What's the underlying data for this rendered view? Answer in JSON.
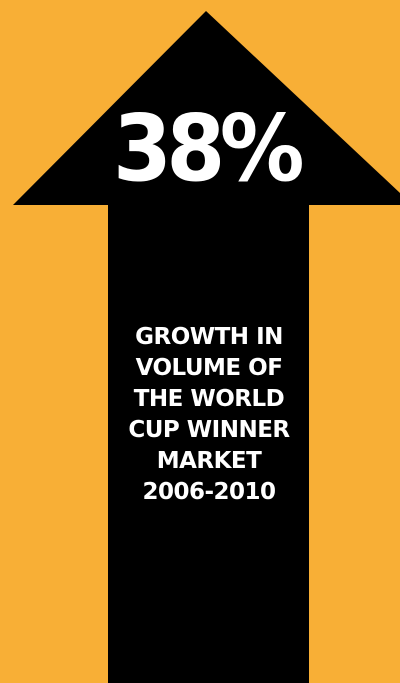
{
  "stat": {
    "value": "38%"
  },
  "caption": {
    "lines": [
      "GROWTH IN",
      "VOLUME OF",
      "THE WORLD",
      "CUP WINNER",
      "MARKET",
      "2006-2010"
    ]
  },
  "colors": {
    "background": "#F8AF36",
    "arrow": "#000000",
    "text": "#FFFFFF"
  },
  "icons": {
    "arrow": "up-arrow-icon"
  }
}
